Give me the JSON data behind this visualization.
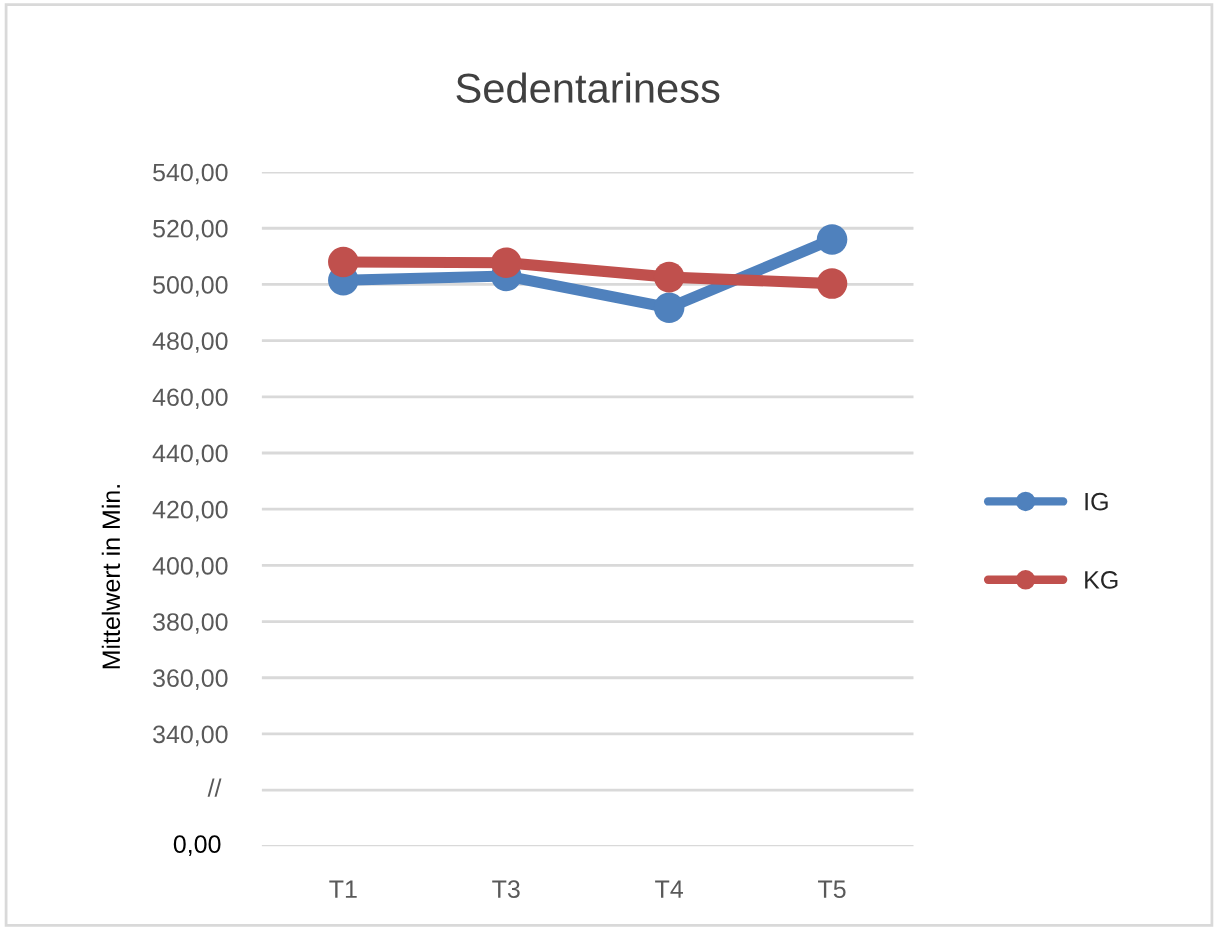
{
  "chart_data": {
    "type": "line",
    "title": "Sedentariness",
    "ylabel": "Mittelwert in Min.",
    "categories": [
      "T1",
      "T3",
      "T4",
      "T5"
    ],
    "series": [
      {
        "name": "IG",
        "color": "#4f81bd",
        "values": [
          501.5,
          503,
          491.7,
          516
        ]
      },
      {
        "name": "KG",
        "color": "#c0504d",
        "values": [
          508,
          507.7,
          502.6,
          500.3
        ]
      }
    ],
    "ylim": [
      300,
      540
    ],
    "yticks": [
      {
        "value": 300,
        "label": null
      },
      {
        "value": 320,
        "label": null
      },
      {
        "value": 340,
        "label": "340,00"
      },
      {
        "value": 360,
        "label": "360,00"
      },
      {
        "value": 380,
        "label": "380,00"
      },
      {
        "value": 400,
        "label": "400,00"
      },
      {
        "value": 420,
        "label": "420,00"
      },
      {
        "value": 440,
        "label": "440,00"
      },
      {
        "value": 460,
        "label": "460,00"
      },
      {
        "value": 480,
        "label": "480,00"
      },
      {
        "value": 500,
        "label": "500,00"
      },
      {
        "value": 520,
        "label": "520,00"
      },
      {
        "value": 540,
        "label": "540,00"
      }
    ],
    "annotations": [
      "//",
      "0,00"
    ],
    "grid": "y",
    "legend": "right",
    "marker": "circle",
    "line_style": "solid"
  }
}
